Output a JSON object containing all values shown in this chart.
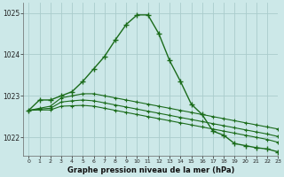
{
  "title": "Graphe pression niveau de la mer (hPa)",
  "background_color": "#cce8e8",
  "grid_color": "#aacccc",
  "line_color": "#1a6b1a",
  "xlim": [
    -0.5,
    23
  ],
  "ylim": [
    1021.55,
    1025.25
  ],
  "yticks": [
    1022,
    1023,
    1024,
    1025
  ],
  "xticks": [
    0,
    1,
    2,
    3,
    4,
    5,
    6,
    7,
    8,
    9,
    10,
    11,
    12,
    13,
    14,
    15,
    16,
    17,
    18,
    19,
    20,
    21,
    22,
    23
  ],
  "series1_x": [
    0,
    1,
    2,
    3,
    4,
    5,
    6,
    7,
    8,
    9,
    10,
    11,
    12,
    13,
    14,
    15,
    16,
    17,
    18,
    19,
    20,
    21,
    22,
    23
  ],
  "series1_y": [
    1022.65,
    1022.9,
    1022.9,
    1023.0,
    1023.1,
    1023.35,
    1023.65,
    1023.95,
    1024.35,
    1024.72,
    1024.95,
    1024.95,
    1024.5,
    1023.85,
    1023.35,
    1022.8,
    1022.55,
    1022.15,
    1022.05,
    1021.85,
    1021.8,
    1021.75,
    1021.72,
    1021.65
  ],
  "series2_x": [
    0,
    1,
    2,
    3,
    4,
    5,
    6,
    7,
    8,
    9,
    10,
    11,
    12,
    13,
    14,
    15,
    16,
    17,
    18,
    19,
    20,
    21,
    22,
    23
  ],
  "series2_y": [
    1022.65,
    1022.7,
    1022.75,
    1022.95,
    1023.0,
    1023.05,
    1023.05,
    1023.0,
    1022.95,
    1022.9,
    1022.85,
    1022.8,
    1022.75,
    1022.7,
    1022.65,
    1022.6,
    1022.55,
    1022.5,
    1022.45,
    1022.4,
    1022.35,
    1022.3,
    1022.25,
    1022.2
  ],
  "series3_x": [
    0,
    1,
    2,
    3,
    4,
    5,
    6,
    7,
    8,
    9,
    10,
    11,
    12,
    13,
    14,
    15,
    16,
    17,
    18,
    19,
    20,
    21,
    22,
    23
  ],
  "series3_y": [
    1022.65,
    1022.68,
    1022.7,
    1022.85,
    1022.88,
    1022.9,
    1022.88,
    1022.83,
    1022.78,
    1022.73,
    1022.68,
    1022.63,
    1022.58,
    1022.53,
    1022.48,
    1022.43,
    1022.38,
    1022.33,
    1022.28,
    1022.23,
    1022.18,
    1022.13,
    1022.08,
    1022.02
  ],
  "series4_x": [
    0,
    1,
    2,
    3,
    4,
    5,
    6,
    7,
    8,
    9,
    10,
    11,
    12,
    13,
    14,
    15,
    16,
    17,
    18,
    19,
    20,
    21,
    22,
    23
  ],
  "series4_y": [
    1022.65,
    1022.66,
    1022.66,
    1022.75,
    1022.76,
    1022.77,
    1022.75,
    1022.7,
    1022.65,
    1022.6,
    1022.55,
    1022.5,
    1022.45,
    1022.4,
    1022.35,
    1022.3,
    1022.25,
    1022.2,
    1022.15,
    1022.1,
    1022.05,
    1022.0,
    1021.95,
    1021.88
  ]
}
